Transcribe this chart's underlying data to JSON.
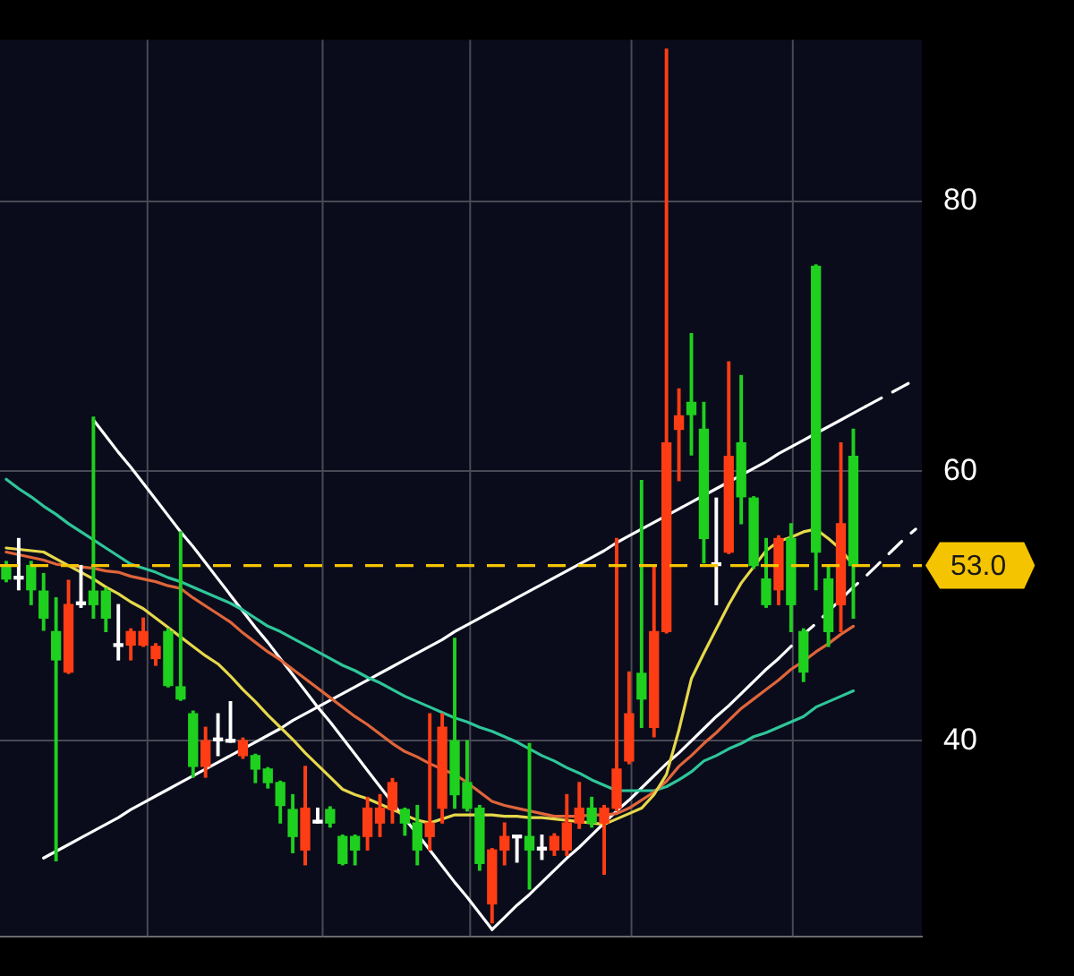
{
  "chart_data": {
    "type": "candlestick",
    "categories": [
      null,
      null,
      null,
      null,
      null,
      null,
      null,
      null,
      null,
      null,
      null,
      null,
      null,
      null,
      null,
      null,
      null,
      null,
      null,
      null,
      null,
      null,
      null,
      null,
      null,
      null,
      null,
      null,
      null,
      null,
      null,
      null,
      null,
      null,
      null,
      null,
      null,
      null,
      null,
      null,
      null,
      null,
      null,
      null,
      null,
      null,
      null,
      null,
      null,
      null,
      null,
      null,
      null,
      null,
      null,
      null,
      null,
      null,
      null,
      null,
      null,
      null,
      null,
      null,
      null,
      null,
      null,
      null,
      null,
      null,
      null,
      null,
      null,
      null
    ],
    "ohlc": [
      [
        53.0,
        53.3,
        51.8,
        52.0
      ],
      [
        52.0,
        55.0,
        51.2,
        52.0
      ],
      [
        53.0,
        53.3,
        50.1,
        51.2
      ],
      [
        51.1,
        52.4,
        48.2,
        49.1
      ],
      [
        48.1,
        50.6,
        31.1,
        46.0
      ],
      [
        45.1,
        51.9,
        45.0,
        50.1
      ],
      [
        50.1,
        53.0,
        49.9,
        50.1
      ],
      [
        51.1,
        64.0,
        49.1,
        50.1
      ],
      [
        51.1,
        51.3,
        48.1,
        49.1
      ],
      [
        47.0,
        50.1,
        46.0,
        47.0
      ],
      [
        47.1,
        48.3,
        46.0,
        48.1
      ],
      [
        47.1,
        49.1,
        47.0,
        48.1
      ],
      [
        46.1,
        47.2,
        45.6,
        47.0
      ],
      [
        48.1,
        48.3,
        44.0,
        44.1
      ],
      [
        44.0,
        55.5,
        43.0,
        43.1
      ],
      [
        42.0,
        42.2,
        37.3,
        38.1
      ],
      [
        38.1,
        41.0,
        37.3,
        40.0
      ],
      [
        40.0,
        42.0,
        38.9,
        40.0
      ],
      [
        39.9,
        42.9,
        39.9,
        39.9
      ],
      [
        38.9,
        40.2,
        38.7,
        40.0
      ],
      [
        38.9,
        39.0,
        36.9,
        37.9
      ],
      [
        37.9,
        38.0,
        36.5,
        36.9
      ],
      [
        36.9,
        37.0,
        33.9,
        35.2
      ],
      [
        34.9,
        36.0,
        31.7,
        32.9
      ],
      [
        31.9,
        38.1,
        30.8,
        35.0
      ],
      [
        33.9,
        35.0,
        33.9,
        33.9
      ],
      [
        34.9,
        35.1,
        33.6,
        33.9
      ],
      [
        32.9,
        33.0,
        30.8,
        30.9
      ],
      [
        32.9,
        33.0,
        30.8,
        31.9
      ],
      [
        32.9,
        35.8,
        31.9,
        35.0
      ],
      [
        33.9,
        36.0,
        32.9,
        35.0
      ],
      [
        34.9,
        37.2,
        33.9,
        36.9
      ],
      [
        34.9,
        35.0,
        33.0,
        33.9
      ],
      [
        33.9,
        35.2,
        30.8,
        31.9
      ],
      [
        32.9,
        42.0,
        31.9,
        33.9
      ],
      [
        35.0,
        42.0,
        33.9,
        41.0
      ],
      [
        40.0,
        47.6,
        35.0,
        36.0
      ],
      [
        36.9,
        40.0,
        34.8,
        35.0
      ],
      [
        35.0,
        35.2,
        30.4,
        30.9
      ],
      [
        27.9,
        32.0,
        26.5,
        31.9
      ],
      [
        31.9,
        33.9,
        30.8,
        32.9
      ],
      [
        32.8,
        32.8,
        31.0,
        32.8
      ],
      [
        32.9,
        39.8,
        29.0,
        31.9
      ],
      [
        31.9,
        33.0,
        31.2,
        31.9
      ],
      [
        31.9,
        33.1,
        31.5,
        32.9
      ],
      [
        31.9,
        36.0,
        31.5,
        33.9
      ],
      [
        33.9,
        36.9,
        33.5,
        35.0
      ],
      [
        35.0,
        35.8,
        33.6,
        33.9
      ],
      [
        33.9,
        35.2,
        30.1,
        35.0
      ],
      [
        35.0,
        55.0,
        34.8,
        37.9
      ],
      [
        38.5,
        45.1,
        38.3,
        42.0
      ],
      [
        45.0,
        59.3,
        41.0,
        43.1
      ],
      [
        41.0,
        53.0,
        40.3,
        48.1
      ],
      [
        48.1,
        91.3,
        48.0,
        62.1
      ],
      [
        63.1,
        66.1,
        59.3,
        64.1
      ],
      [
        65.1,
        70.2,
        61.2,
        64.2
      ],
      [
        63.1,
        65.1,
        53.2,
        55.0
      ],
      [
        53.0,
        58.0,
        50.1,
        53.0
      ],
      [
        54.0,
        68.1,
        53.9,
        61.1
      ],
      [
        62.1,
        67.1,
        56.1,
        58.1
      ],
      [
        58.0,
        58.1,
        52.8,
        53.0
      ],
      [
        52.0,
        55.0,
        49.9,
        50.1
      ],
      [
        51.2,
        55.2,
        50.1,
        55.0
      ],
      [
        55.0,
        56.1,
        48.1,
        50.1
      ],
      [
        48.1,
        48.3,
        44.4,
        45.1
      ],
      [
        75.2,
        75.3,
        51.2,
        54.0
      ],
      [
        52.0,
        53.0,
        47.0,
        48.1
      ],
      [
        50.1,
        62.1,
        48.1,
        56.1
      ],
      [
        61.1,
        63.1,
        49.1,
        53.0
      ],
      null,
      null,
      null,
      null,
      null
    ],
    "colors": [
      "#1fd01f",
      "#ffffff",
      "#1fd01f",
      "#1fd01f",
      "#1fd01f",
      "#ff3d14",
      "#ffffff",
      "#1fd01f",
      "#1fd01f",
      "#ffffff",
      "#ff3d14",
      "#ff3d14",
      "#ff3d14",
      "#1fd01f",
      "#1fd01f",
      "#1fd01f",
      "#ff3d14",
      "#ffffff",
      "#ffffff",
      "#ff3d14",
      "#1fd01f",
      "#1fd01f",
      "#1fd01f",
      "#1fd01f",
      "#ff3d14",
      "#ffffff",
      "#1fd01f",
      "#1fd01f",
      "#1fd01f",
      "#ff3d14",
      "#ff3d14",
      "#ff3d14",
      "#1fd01f",
      "#1fd01f",
      "#ff3d14",
      "#ff3d14",
      "#1fd01f",
      "#1fd01f",
      "#1fd01f",
      "#ff3d14",
      "#ff3d14",
      "#ffffff",
      "#1fd01f",
      "#ffffff",
      "#ff3d14",
      "#ff3d14",
      "#ff3d14",
      "#1fd01f",
      "#ff3d14",
      "#ff3d14",
      "#ff3d14",
      "#1fd01f",
      "#ff3d14",
      "#ff3d14",
      "#ff3d14",
      "#1fd01f",
      "#1fd01f",
      "#ffffff",
      "#ff3d14",
      "#1fd01f",
      "#1fd01f",
      "#1fd01f",
      "#ff3d14",
      "#1fd01f",
      "#1fd01f",
      "#1fd01f",
      "#1fd01f",
      "#ff3d14",
      "#1fd01f",
      null,
      null,
      null,
      null,
      null
    ],
    "series": [
      {
        "type": "line",
        "color": "#e6d84a",
        "values": [
          54.3,
          54.2,
          54.1,
          54.0,
          53.5,
          53.0,
          52.5,
          52.0,
          51.4,
          50.9,
          50.3,
          49.8,
          49.1,
          48.4,
          47.7,
          47.0,
          46.3,
          45.7,
          44.8,
          43.8,
          42.9,
          41.9,
          41.0,
          40.1,
          39.1,
          38.2,
          37.3,
          36.4,
          36.0,
          35.7,
          35.3,
          34.9,
          34.5,
          34.1,
          33.9,
          34.2,
          34.5,
          34.5,
          34.5,
          34.5,
          34.4,
          34.4,
          34.3,
          34.3,
          34.2,
          34.1,
          34.0,
          33.9,
          33.8,
          34.2,
          34.6,
          35.0,
          36.0,
          37.5,
          40.8,
          44.6,
          46.5,
          48.3,
          50.1,
          51.7,
          52.9,
          54.1,
          54.8,
          55.1,
          55.5,
          55.7,
          55.0,
          54.2,
          53.0,
          null,
          null,
          null,
          null,
          null
        ]
      },
      {
        "type": "line",
        "color": "#e0653a",
        "values": [
          54.0,
          53.8,
          53.6,
          53.4,
          53.1,
          53.0,
          52.9,
          52.8,
          52.6,
          52.5,
          52.2,
          52.0,
          51.8,
          51.5,
          51.3,
          50.6,
          50.0,
          49.4,
          48.8,
          48.0,
          47.3,
          46.6,
          46.0,
          45.3,
          44.6,
          43.9,
          43.2,
          42.5,
          41.8,
          41.2,
          40.5,
          39.8,
          39.2,
          38.8,
          38.3,
          37.9,
          37.5,
          36.9,
          36.2,
          35.5,
          35.2,
          35.0,
          34.8,
          34.6,
          34.4,
          34.4,
          34.4,
          34.5,
          34.5,
          34.6,
          35.0,
          35.6,
          36.2,
          37.0,
          38.1,
          38.9,
          39.8,
          40.6,
          41.5,
          42.4,
          43.1,
          43.8,
          44.5,
          45.3,
          45.9,
          46.6,
          47.2,
          47.9,
          48.5,
          null,
          null,
          null,
          null,
          null
        ]
      },
      {
        "type": "line",
        "color": "#2ec69a",
        "values": [
          59.4,
          58.7,
          58.1,
          57.4,
          56.8,
          56.1,
          55.5,
          54.9,
          54.3,
          53.7,
          53.1,
          52.8,
          52.5,
          52.1,
          51.8,
          51.4,
          51.0,
          50.6,
          50.2,
          49.7,
          49.1,
          48.5,
          48.1,
          47.6,
          47.1,
          46.6,
          46.1,
          45.6,
          45.2,
          44.7,
          44.3,
          43.8,
          43.3,
          42.9,
          42.5,
          42.1,
          41.7,
          41.4,
          41.0,
          40.7,
          40.3,
          39.9,
          39.4,
          38.9,
          38.5,
          38.0,
          37.6,
          37.1,
          36.7,
          36.3,
          36.3,
          36.3,
          36.3,
          36.6,
          37.1,
          37.7,
          38.5,
          38.9,
          39.4,
          39.8,
          40.3,
          40.6,
          41.0,
          41.4,
          41.8,
          42.5,
          42.9,
          43.3,
          43.7,
          null,
          null,
          null,
          null,
          null
        ]
      },
      {
        "type": "line",
        "color": "#ffffff",
        "line_style": "solid",
        "values": [
          null,
          null,
          null,
          null,
          null,
          null,
          null,
          63.8,
          62.6,
          61.4,
          60.3,
          59.1,
          57.9,
          56.7,
          55.5,
          54.4,
          53.2,
          52.0,
          50.8,
          49.6,
          48.4,
          47.3,
          46.1,
          44.9,
          43.7,
          42.5,
          41.4,
          40.2,
          39.0,
          37.8,
          36.6,
          35.4,
          34.2,
          33.1,
          31.9,
          30.7,
          29.5,
          28.4,
          27.2,
          26.0,
          null,
          null,
          null,
          null,
          null,
          null,
          null,
          null,
          null,
          null,
          null,
          null,
          null,
          null,
          null,
          null,
          null,
          null,
          null,
          null,
          null,
          null,
          null,
          null,
          null,
          null,
          null,
          null,
          null,
          null,
          null,
          null,
          null,
          null
        ]
      },
      {
        "type": "line",
        "color": "#ffffff",
        "line_style": "solid",
        "values": [
          null,
          null,
          null,
          31.3,
          31.8,
          32.3,
          32.8,
          33.3,
          33.8,
          34.3,
          34.9,
          35.4,
          35.9,
          36.4,
          36.9,
          37.4,
          37.9,
          38.4,
          38.9,
          39.4,
          39.9,
          40.4,
          40.9,
          41.5,
          42.0,
          42.5,
          43.0,
          43.5,
          44.0,
          44.5,
          45.0,
          45.5,
          46.0,
          46.5,
          47.0,
          47.5,
          48.1,
          48.6,
          49.1,
          49.6,
          50.1,
          50.6,
          51.1,
          51.6,
          52.1,
          52.6,
          53.1,
          53.6,
          54.1,
          54.7,
          55.2,
          55.7,
          56.2,
          56.7,
          57.2,
          57.7,
          58.2,
          58.7,
          59.2,
          59.7,
          60.2,
          60.7,
          61.3,
          61.8,
          62.3,
          62.8,
          63.3,
          63.8,
          64.3,
          64.8,
          null,
          null,
          null,
          null
        ]
      },
      {
        "type": "line",
        "color": "#ffffff",
        "line_style": "dashed",
        "values": [
          null,
          null,
          null,
          null,
          null,
          null,
          null,
          null,
          null,
          null,
          null,
          null,
          null,
          null,
          null,
          null,
          null,
          null,
          null,
          null,
          null,
          null,
          null,
          null,
          null,
          null,
          null,
          null,
          null,
          null,
          null,
          null,
          null,
          null,
          null,
          null,
          null,
          null,
          null,
          null,
          null,
          null,
          null,
          null,
          null,
          null,
          null,
          null,
          null,
          null,
          null,
          null,
          null,
          null,
          null,
          null,
          null,
          null,
          null,
          null,
          null,
          null,
          null,
          null,
          null,
          null,
          null,
          null,
          null,
          64.8,
          65.3,
          65.8,
          66.3,
          66.8
        ]
      },
      {
        "type": "line",
        "color": "#ffffff",
        "line_style": "solid",
        "values": [
          null,
          null,
          null,
          null,
          null,
          null,
          null,
          null,
          null,
          null,
          null,
          null,
          null,
          null,
          null,
          null,
          null,
          null,
          null,
          null,
          null,
          null,
          null,
          null,
          null,
          null,
          null,
          null,
          null,
          null,
          null,
          null,
          null,
          null,
          null,
          null,
          null,
          null,
          null,
          26.0,
          26.9,
          27.8,
          28.6,
          29.5,
          30.4,
          31.3,
          32.1,
          33.0,
          33.9,
          34.8,
          35.6,
          36.5,
          37.4,
          38.3,
          39.1,
          40.0,
          40.9,
          41.8,
          42.6,
          43.5,
          44.4,
          45.3,
          46.1,
          null,
          null,
          null,
          null,
          null,
          null,
          null,
          null,
          null,
          null,
          null
        ]
      },
      {
        "type": "line",
        "color": "#ffffff",
        "line_style": "dashed",
        "values": [
          null,
          null,
          null,
          null,
          null,
          null,
          null,
          null,
          null,
          null,
          null,
          null,
          null,
          null,
          null,
          null,
          null,
          null,
          null,
          null,
          null,
          null,
          null,
          null,
          null,
          null,
          null,
          null,
          null,
          null,
          null,
          null,
          null,
          null,
          null,
          null,
          null,
          null,
          null,
          null,
          null,
          null,
          null,
          null,
          null,
          null,
          null,
          null,
          null,
          null,
          null,
          null,
          null,
          null,
          null,
          null,
          null,
          null,
          null,
          null,
          null,
          null,
          46.1,
          47.0,
          47.9,
          48.7,
          49.6,
          50.5,
          51.4,
          52.2,
          53.1,
          54.0,
          54.9,
          55.7
        ]
      }
    ],
    "ref_lines": [
      {
        "axis": "y",
        "value": 53.0,
        "label": "53.0",
        "color": "#f5c400",
        "line_style": "dashed"
      }
    ],
    "ylim": [
      25.5,
      92
    ],
    "yticks": [
      40,
      60,
      80
    ],
    "tick_labels": "y",
    "grid": true,
    "legend": false,
    "marker": "none"
  }
}
